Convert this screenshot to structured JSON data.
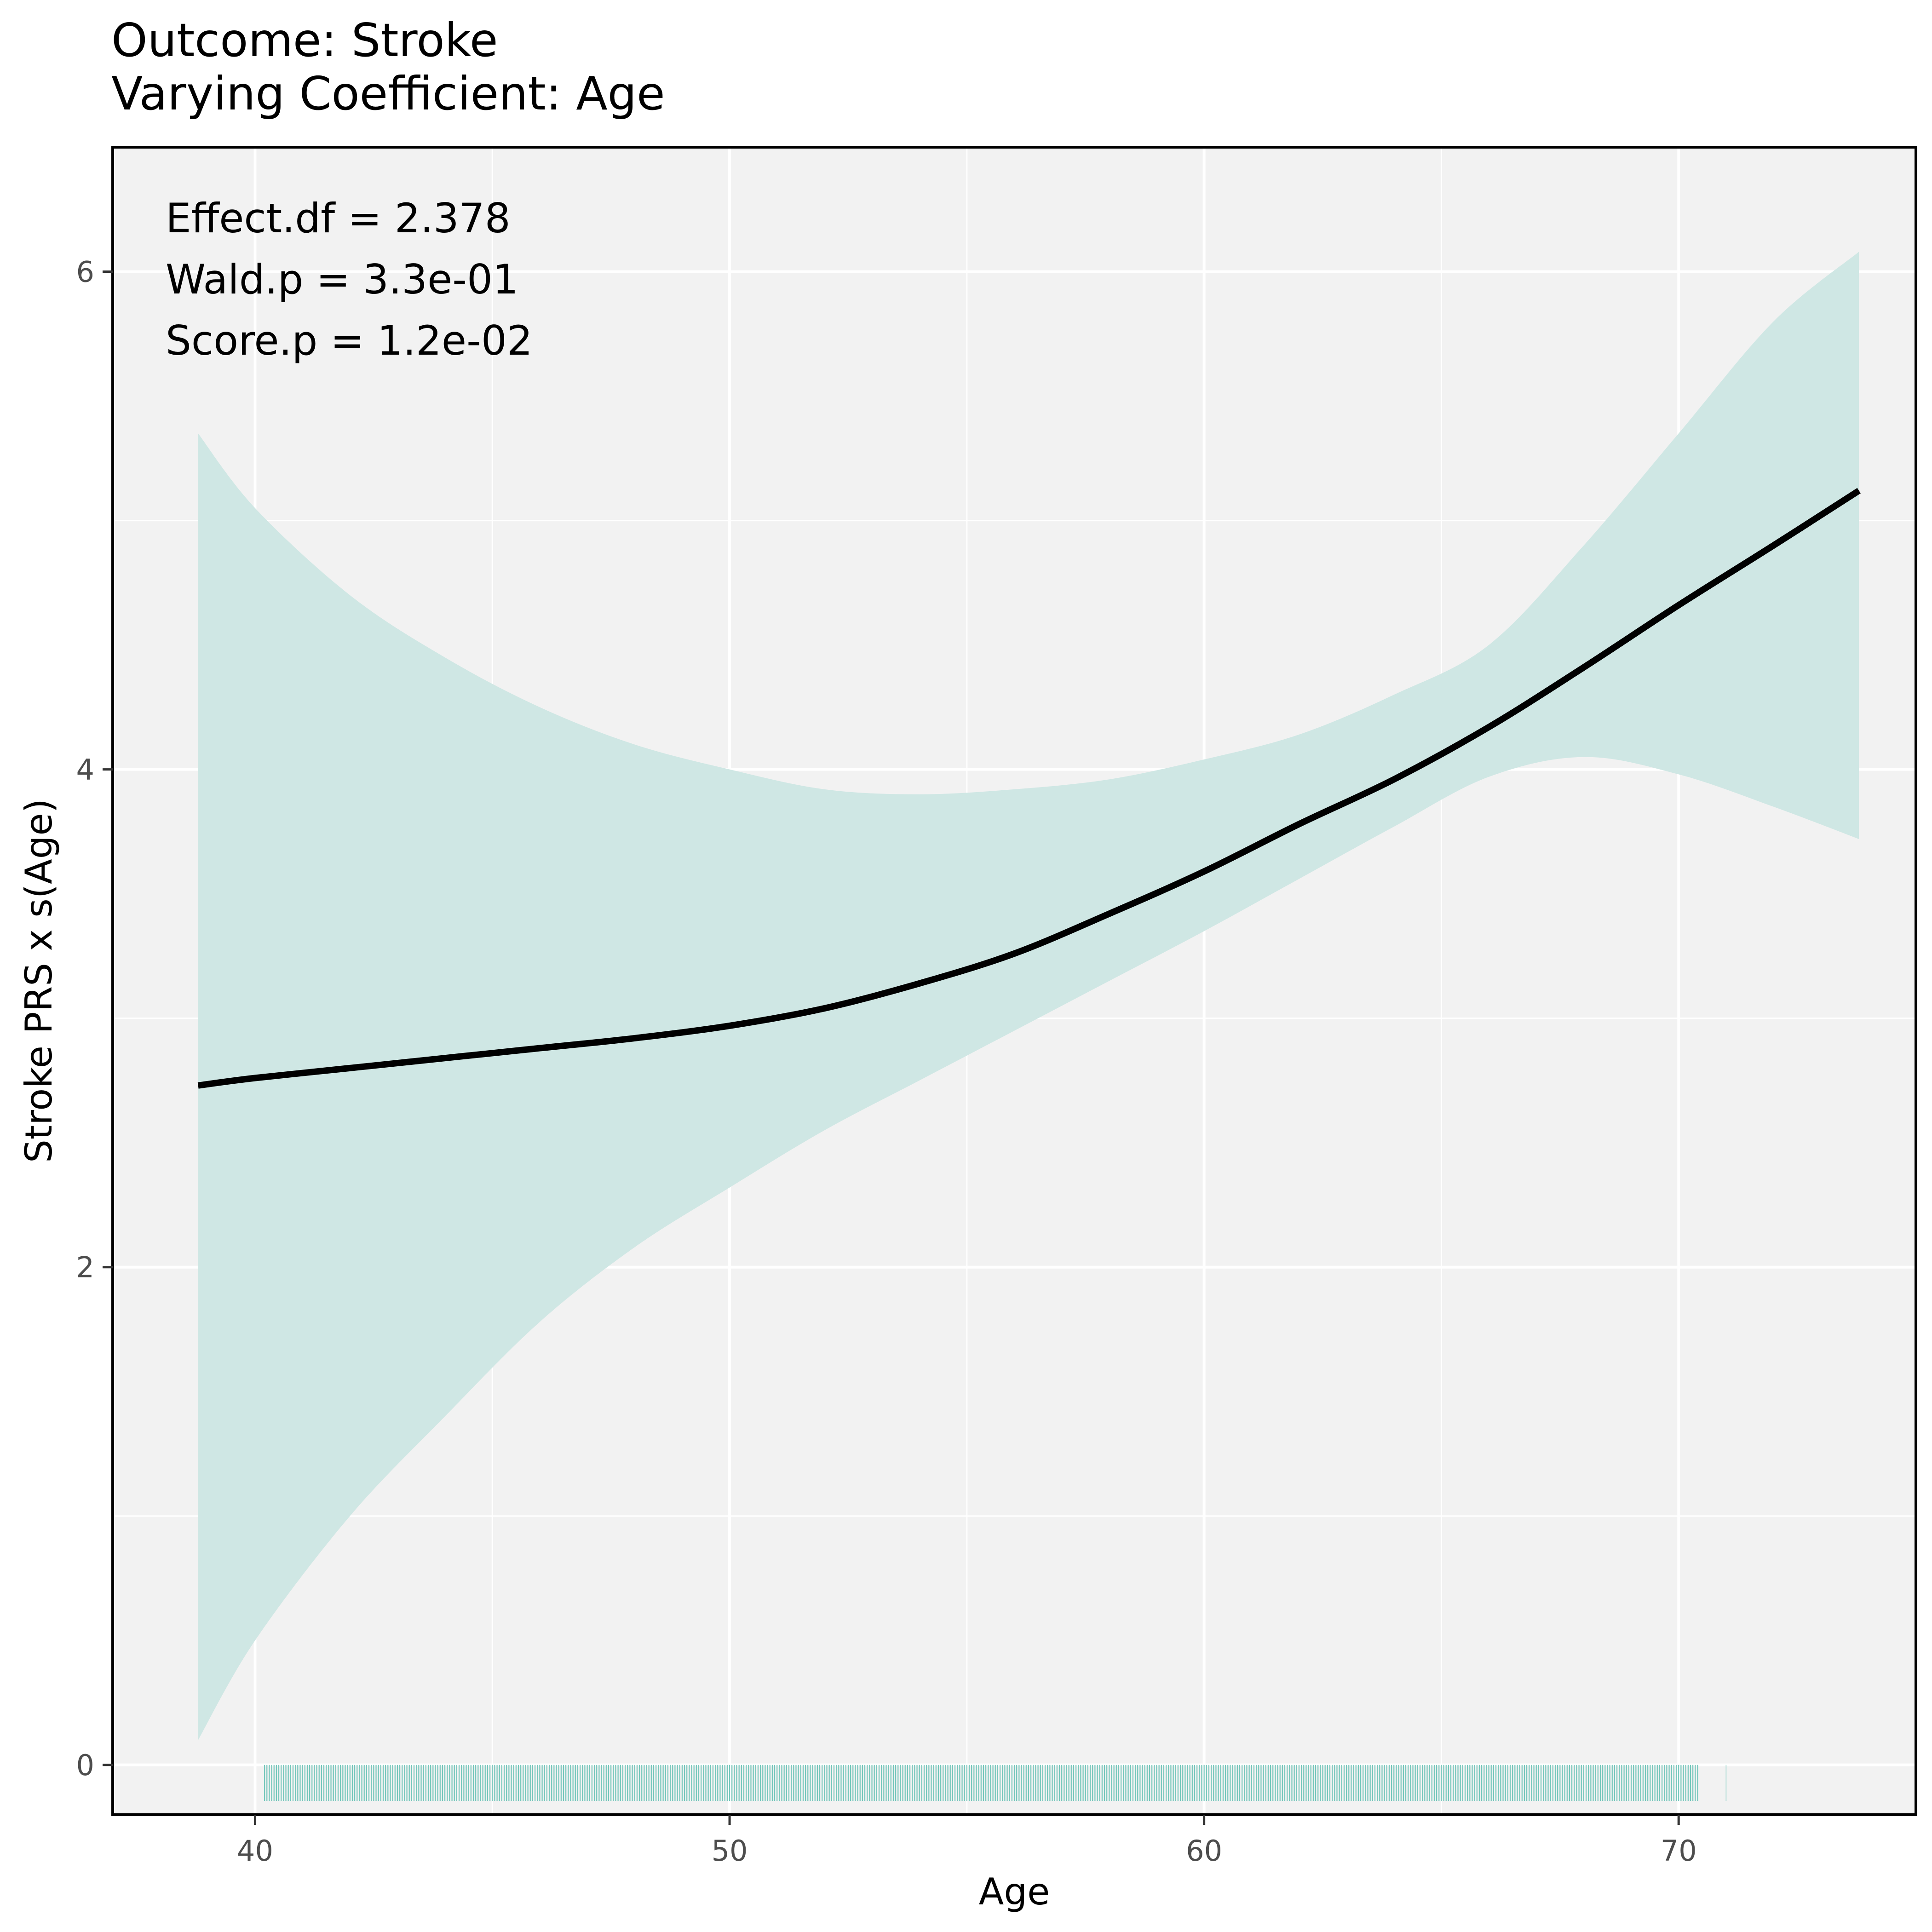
{
  "chart_data": {
    "type": "line",
    "title": "Outcome: Stroke",
    "subtitle": "Varying Coefficient: Age",
    "xlabel": "Age",
    "ylabel": "Stroke PRS x s(Age)",
    "xlim": [
      37,
      75
    ],
    "ylim": [
      -0.2,
      6.5
    ],
    "x_ticks": [
      40,
      50,
      60,
      70
    ],
    "y_ticks": [
      0,
      2,
      4,
      6
    ],
    "grid": true,
    "annotations": [
      "Effect.df = 2.378",
      "Wald.p = 3.3e-01",
      "Score.p = 1.2e-02"
    ],
    "series": [
      {
        "x": [
          38.8,
          40,
          42,
          44,
          46,
          48,
          50,
          52,
          54,
          56,
          58,
          60,
          62,
          64,
          66,
          68,
          70,
          72,
          73.8
        ],
        "y": [
          2.73,
          2.76,
          2.8,
          2.84,
          2.88,
          2.92,
          2.97,
          3.04,
          3.14,
          3.26,
          3.42,
          3.59,
          3.78,
          3.96,
          4.17,
          4.41,
          4.66,
          4.9,
          5.12
        ],
        "lower": [
          0.1,
          0.5,
          1.0,
          1.4,
          1.78,
          2.08,
          2.32,
          2.55,
          2.75,
          2.95,
          3.15,
          3.35,
          3.56,
          3.77,
          3.97,
          4.05,
          3.98,
          3.85,
          3.72
        ],
        "upper": [
          5.35,
          5.05,
          4.7,
          4.45,
          4.25,
          4.1,
          4.0,
          3.92,
          3.9,
          3.92,
          3.96,
          4.04,
          4.14,
          4.3,
          4.5,
          4.9,
          5.35,
          5.8,
          6.08
        ]
      }
    ],
    "rug": {
      "from": 40.2,
      "to": 70.4,
      "outlier": 71.0,
      "color": "#66c2b5"
    },
    "colors": {
      "line": "#000000",
      "ribbon": "#cfe7e4",
      "panel_background": "#f2f2f2",
      "grid": "#ffffff"
    }
  }
}
